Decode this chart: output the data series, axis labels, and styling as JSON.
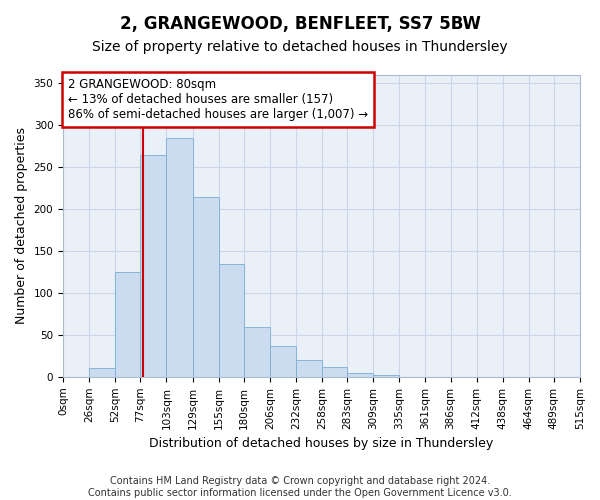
{
  "title": "2, GRANGEWOOD, BENFLEET, SS7 5BW",
  "subtitle": "Size of property relative to detached houses in Thundersley",
  "xlabel": "Distribution of detached houses by size in Thundersley",
  "ylabel": "Number of detached properties",
  "footer_line1": "Contains HM Land Registry data © Crown copyright and database right 2024.",
  "footer_line2": "Contains public sector information licensed under the Open Government Licence v3.0.",
  "bin_edges": [
    0,
    26,
    52,
    77,
    103,
    129,
    155,
    180,
    206,
    232,
    258,
    283,
    309,
    335,
    361,
    386,
    412,
    438,
    464,
    489,
    515
  ],
  "bin_labels": [
    "0sqm",
    "26sqm",
    "52sqm",
    "77sqm",
    "103sqm",
    "129sqm",
    "155sqm",
    "180sqm",
    "206sqm",
    "232sqm",
    "258sqm",
    "283sqm",
    "309sqm",
    "335sqm",
    "361sqm",
    "386sqm",
    "412sqm",
    "438sqm",
    "464sqm",
    "489sqm",
    "515sqm"
  ],
  "bar_heights": [
    0,
    10,
    125,
    265,
    285,
    215,
    135,
    60,
    37,
    20,
    12,
    5,
    2,
    0,
    0,
    0,
    0,
    0,
    0,
    0
  ],
  "bar_color": "#ccdcf0",
  "bar_edge_color": "#7aaed4",
  "property_size": 80,
  "property_label": "2 GRANGEWOOD: 80sqm",
  "annotation_line1": "← 13% of detached houses are smaller (157)",
  "annotation_line2": "86% of semi-detached houses are larger (1,007) →",
  "annotation_box_color": "#ffffff",
  "annotation_box_edge": "#cc0000",
  "vline_color": "#cc0000",
  "ylim": [
    0,
    360
  ],
  "yticks": [
    0,
    50,
    100,
    150,
    200,
    250,
    300,
    350
  ],
  "grid_color": "#ccd6e8",
  "plot_bg_color": "#eaf0f8",
  "title_fontsize": 12,
  "subtitle_fontsize": 10,
  "axis_label_fontsize": 9,
  "tick_fontsize": 7.5,
  "footer_fontsize": 7
}
